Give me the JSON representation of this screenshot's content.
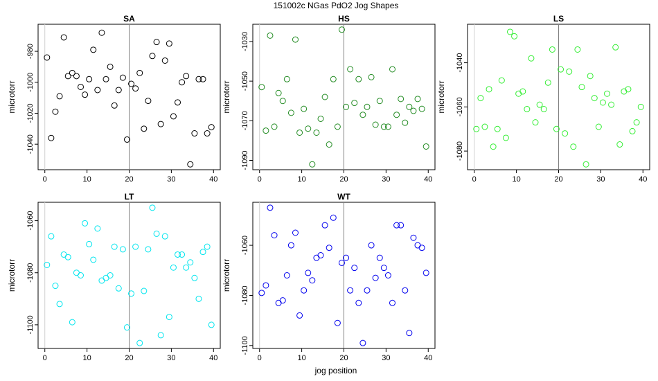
{
  "figure": {
    "title": "151002c   NGas PdO2 Jog Shapes",
    "xlabel": "jog position"
  },
  "chart_data": [
    {
      "type": "scatter",
      "title": "SA",
      "ylabel": "microtorr",
      "color": "#000000",
      "xlim": [
        0,
        40
      ],
      "ylim": [
        -1053,
        -966
      ],
      "xticks": [
        0,
        10,
        20,
        30,
        40
      ],
      "yticks": [
        -1040,
        -1020,
        -1000,
        -980
      ],
      "marker_x": 20,
      "x": [
        0.5,
        1.5,
        2.5,
        3.5,
        4.5,
        5.5,
        6.5,
        7.5,
        8.5,
        9.5,
        10.5,
        11.5,
        12.5,
        13.5,
        14.5,
        15.5,
        16.5,
        17.5,
        18.5,
        19.5,
        20.5,
        21.5,
        22.5,
        23.5,
        24.5,
        25.5,
        26.5,
        27.5,
        28.5,
        29.5,
        30.5,
        31.5,
        32.5,
        33.5,
        34.5,
        35.5,
        36.5,
        37.5,
        38.5,
        39.5
      ],
      "y": [
        -984,
        -1036,
        -1019,
        -1009,
        -971,
        -996,
        -994,
        -996,
        -1003,
        -1008,
        -998,
        -979,
        -1005,
        -968,
        -998,
        -990,
        -1015,
        -1005,
        -997,
        -1037,
        -1001,
        -1004,
        -994,
        -1030,
        -1012,
        -983,
        -974,
        -1027,
        -986,
        -975,
        -1022,
        -1013,
        -1000,
        -996,
        -1053,
        -1033,
        -998,
        -998,
        -1033,
        -1029
      ]
    },
    {
      "type": "scatter",
      "title": "HS",
      "ylabel": "microtorr",
      "color": "#228B22",
      "xlim": [
        0,
        40
      ],
      "ylim": [
        -1092,
        -1024
      ],
      "xticks": [
        0,
        10,
        20,
        30,
        40
      ],
      "yticks": [
        -1090,
        -1070,
        -1050,
        -1030
      ],
      "marker_x": 20,
      "x": [
        0.5,
        1.5,
        2.5,
        3.5,
        4.5,
        5.5,
        6.5,
        7.5,
        8.5,
        9.5,
        10.5,
        11.5,
        12.5,
        13.5,
        14.5,
        15.5,
        16.5,
        17.5,
        18.5,
        19.5,
        20.5,
        21.5,
        22.5,
        23.5,
        24.5,
        25.5,
        26.5,
        27.5,
        28.5,
        29.5,
        30.5,
        31.5,
        32.5,
        33.5,
        34.5,
        35.5,
        36.5,
        37.5,
        38.5,
        39.5
      ],
      "y": [
        -1053,
        -1075,
        -1027,
        -1073,
        -1056,
        -1060,
        -1049,
        -1066,
        -1029,
        -1076,
        -1064,
        -1074,
        -1092,
        -1076,
        -1069,
        -1058,
        -1082,
        -1049,
        -1073,
        -1024,
        -1063,
        -1044,
        -1061,
        -1049,
        -1067,
        -1063,
        -1048,
        -1072,
        -1060,
        -1073,
        -1073,
        -1044,
        -1067,
        -1059,
        -1071,
        -1063,
        -1065,
        -1059,
        -1064,
        -1083
      ]
    },
    {
      "type": "scatter",
      "title": "LS",
      "ylabel": "microtorr",
      "color": "#33EE33",
      "xlim": [
        0,
        40
      ],
      "ylim": [
        -1086,
        -1025
      ],
      "xticks": [
        0,
        10,
        20,
        30,
        40
      ],
      "yticks": [
        -1080,
        -1060,
        -1040
      ],
      "marker_x": 20,
      "x": [
        0.5,
        1.5,
        2.5,
        3.5,
        4.5,
        5.5,
        6.5,
        7.5,
        8.5,
        9.5,
        10.5,
        11.5,
        12.5,
        13.5,
        14.5,
        15.5,
        16.5,
        17.5,
        18.5,
        19.5,
        20.5,
        21.5,
        22.5,
        23.5,
        24.5,
        25.5,
        26.5,
        27.5,
        28.5,
        29.5,
        30.5,
        31.5,
        32.5,
        33.5,
        34.5,
        35.5,
        36.5,
        37.5,
        38.5,
        39.5
      ],
      "y": [
        -1070,
        -1056,
        -1069,
        -1052,
        -1078,
        -1070,
        -1048,
        -1074,
        -1026,
        -1028,
        -1054,
        -1053,
        -1061,
        -1038,
        -1067,
        -1059,
        -1061,
        -1049,
        -1034,
        -1070,
        -1043,
        -1072,
        -1044,
        -1078,
        -1034,
        -1051,
        -1086,
        -1046,
        -1056,
        -1069,
        -1058,
        -1054,
        -1059,
        -1033,
        -1077,
        -1053,
        -1052,
        -1071,
        -1067,
        -1060
      ]
    },
    {
      "type": "scatter",
      "title": "LT",
      "ylabel": "microtorr",
      "color": "#00E5EE",
      "xlim": [
        0,
        40
      ],
      "ylim": [
        -1107,
        -1055
      ],
      "xticks": [
        0,
        10,
        20,
        30,
        40
      ],
      "yticks": [
        -1100,
        -1080,
        -1060
      ],
      "marker_x": 20,
      "x": [
        0.5,
        1.5,
        2.5,
        3.5,
        4.5,
        5.5,
        6.5,
        7.5,
        8.5,
        9.5,
        10.5,
        11.5,
        12.5,
        13.5,
        14.5,
        15.5,
        16.5,
        17.5,
        18.5,
        19.5,
        20.5,
        21.5,
        22.5,
        23.5,
        24.5,
        25.5,
        26.5,
        27.5,
        28.5,
        29.5,
        30.5,
        31.5,
        32.5,
        33.5,
        34.5,
        35.5,
        36.5,
        37.5,
        38.5,
        39.5
      ],
      "y": [
        -1077,
        -1066,
        -1085,
        -1092,
        -1073,
        -1074,
        -1099,
        -1080,
        -1081,
        -1061,
        -1069,
        -1075,
        -1063,
        -1083,
        -1082,
        -1081,
        -1070,
        -1086,
        -1071,
        -1101,
        -1088,
        -1070,
        -1107,
        -1087,
        -1071,
        -1055,
        -1065,
        -1104,
        -1066,
        -1097,
        -1078,
        -1073,
        -1073,
        -1078,
        -1076,
        -1082,
        -1090,
        -1072,
        -1070,
        -1100
      ]
    },
    {
      "type": "scatter",
      "title": "WT",
      "ylabel": "microtorr",
      "color": "#0000EE",
      "xlim": [
        0,
        40
      ],
      "ylim": [
        -1099,
        -1045
      ],
      "xticks": [
        0,
        10,
        20,
        30,
        40
      ],
      "yticks": [
        -1100,
        -1080,
        -1060
      ],
      "marker_x": 20,
      "x": [
        0.5,
        1.5,
        2.5,
        3.5,
        4.5,
        5.5,
        6.5,
        7.5,
        8.5,
        9.5,
        10.5,
        11.5,
        12.5,
        13.5,
        14.5,
        15.5,
        16.5,
        17.5,
        18.5,
        19.5,
        20.5,
        21.5,
        22.5,
        23.5,
        24.5,
        25.5,
        26.5,
        27.5,
        28.5,
        29.5,
        30.5,
        31.5,
        32.5,
        33.5,
        34.5,
        35.5,
        36.5,
        37.5,
        38.5,
        39.5
      ],
      "y": [
        -1079,
        -1076,
        -1045,
        -1056,
        -1083,
        -1082,
        -1072,
        -1060,
        -1055,
        -1088,
        -1078,
        -1071,
        -1074,
        -1065,
        -1064,
        -1052,
        -1061,
        -1049,
        -1091,
        -1067,
        -1065,
        -1078,
        -1069,
        -1083,
        -1099,
        -1078,
        -1060,
        -1073,
        -1065,
        -1069,
        -1072,
        -1083,
        -1052,
        -1052,
        -1078,
        -1095,
        -1057,
        -1060,
        -1061,
        -1071
      ]
    }
  ]
}
